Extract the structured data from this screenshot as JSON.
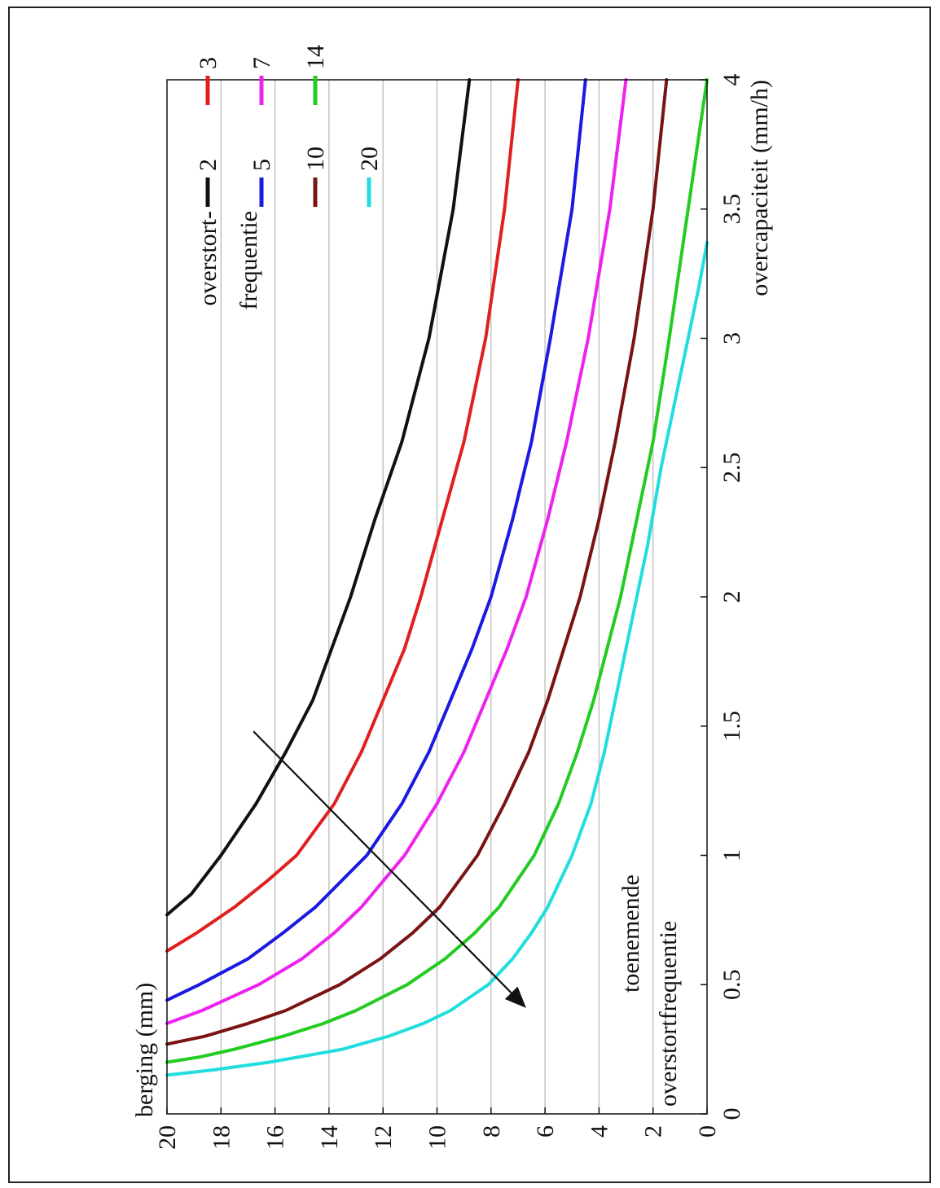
{
  "chart_data": {
    "type": "line",
    "xlabel": "overcapaciteit (mm/h)",
    "ylabel": "berging (mm)",
    "xlim": [
      0,
      4
    ],
    "ylim": [
      0,
      20
    ],
    "xticks": [
      "0",
      "0.5",
      "1",
      "1.5",
      "2",
      "2.5",
      "3",
      "3.5",
      "4"
    ],
    "yticks": [
      "0",
      "2",
      "4",
      "6",
      "8",
      "10",
      "12",
      "14",
      "16",
      "18",
      "20"
    ],
    "grid": "horizontal",
    "legend_title": [
      "overstort-",
      "frequentie"
    ],
    "series": [
      {
        "name": "2",
        "color": "#111111",
        "x": [
          0.77,
          0.85,
          1.0,
          1.2,
          1.4,
          1.6,
          1.8,
          2.0,
          2.3,
          2.6,
          3.0,
          3.5,
          4.0
        ],
        "y": [
          20,
          19.1,
          18.0,
          16.7,
          15.6,
          14.6,
          13.9,
          13.2,
          12.3,
          11.3,
          10.3,
          9.4,
          8.8
        ]
      },
      {
        "name": "3",
        "color": "#e02020",
        "x": [
          0.63,
          0.7,
          0.8,
          0.9,
          1.0,
          1.2,
          1.4,
          1.6,
          1.8,
          2.0,
          2.3,
          2.6,
          3.0,
          3.5,
          4.0
        ],
        "y": [
          20,
          18.9,
          17.5,
          16.3,
          15.2,
          13.8,
          12.8,
          12.0,
          11.2,
          10.6,
          9.8,
          9.0,
          8.2,
          7.5,
          7.0
        ]
      },
      {
        "name": "5",
        "color": "#1a1ae0",
        "x": [
          0.44,
          0.5,
          0.6,
          0.7,
          0.8,
          1.0,
          1.2,
          1.4,
          1.6,
          1.8,
          2.0,
          2.3,
          2.6,
          3.0,
          3.5,
          4.0
        ],
        "y": [
          20,
          18.8,
          17.0,
          15.7,
          14.5,
          12.6,
          11.3,
          10.3,
          9.5,
          8.7,
          8.0,
          7.2,
          6.5,
          5.8,
          5.0,
          4.5
        ]
      },
      {
        "name": "7",
        "color": "#ee22ee",
        "x": [
          0.35,
          0.4,
          0.5,
          0.6,
          0.7,
          0.8,
          1.0,
          1.2,
          1.4,
          1.6,
          1.8,
          2.0,
          2.3,
          2.6,
          3.0,
          3.5,
          4.0
        ],
        "y": [
          20,
          18.7,
          16.6,
          15.0,
          13.8,
          12.8,
          11.2,
          10.0,
          9.0,
          8.2,
          7.4,
          6.7,
          5.9,
          5.2,
          4.4,
          3.6,
          3.0
        ]
      },
      {
        "name": "10",
        "color": "#7a1414",
        "x": [
          0.27,
          0.3,
          0.35,
          0.4,
          0.5,
          0.6,
          0.7,
          0.8,
          1.0,
          1.2,
          1.4,
          1.6,
          1.8,
          2.0,
          2.3,
          2.6,
          3.0,
          3.5,
          4.0
        ],
        "y": [
          20,
          18.6,
          17.0,
          15.6,
          13.6,
          12.1,
          10.9,
          9.9,
          8.5,
          7.5,
          6.6,
          5.9,
          5.3,
          4.7,
          4.0,
          3.4,
          2.7,
          2.0,
          1.5
        ]
      },
      {
        "name": "14",
        "color": "#22cc22",
        "x": [
          0.2,
          0.22,
          0.25,
          0.3,
          0.35,
          0.4,
          0.5,
          0.6,
          0.7,
          0.8,
          1.0,
          1.2,
          1.4,
          1.6,
          1.8,
          2.0,
          2.3,
          2.6,
          3.0,
          3.5,
          4.0
        ],
        "y": [
          20,
          18.8,
          17.5,
          15.7,
          14.2,
          13.0,
          11.1,
          9.7,
          8.6,
          7.7,
          6.4,
          5.5,
          4.8,
          4.2,
          3.7,
          3.2,
          2.6,
          2.0,
          1.4,
          0.7,
          0.0
        ]
      },
      {
        "name": "20",
        "color": "#22dddd",
        "x": [
          0.15,
          0.17,
          0.2,
          0.25,
          0.3,
          0.35,
          0.4,
          0.45,
          0.5,
          0.6,
          0.7,
          0.8,
          1.0,
          1.2,
          1.4,
          1.6,
          1.8,
          2.0,
          2.2,
          2.5,
          2.8,
          3.0,
          3.2,
          3.37
        ],
        "y": [
          20,
          18.3,
          16.2,
          13.5,
          11.8,
          10.5,
          9.5,
          8.8,
          8.1,
          7.2,
          6.5,
          5.9,
          5.0,
          4.3,
          3.8,
          3.4,
          3.0,
          2.6,
          2.2,
          1.7,
          1.1,
          0.7,
          0.3,
          0.0
        ]
      }
    ],
    "annotation": {
      "lines": [
        "toenemende",
        "overstortfrequentie"
      ],
      "arrow_from": [
        1.48,
        16.8
      ],
      "arrow_to": [
        0.41,
        6.7
      ]
    }
  }
}
